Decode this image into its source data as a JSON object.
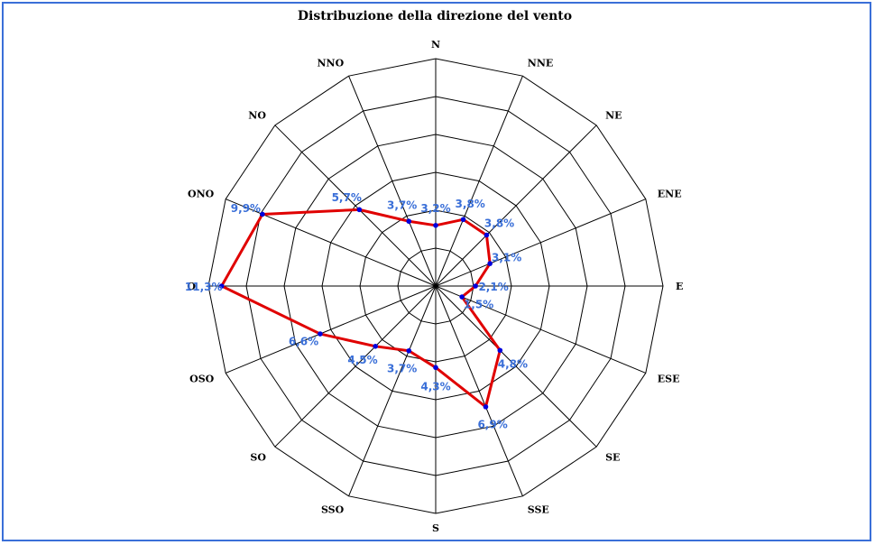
{
  "colors": {
    "frame": "#3a6fd8",
    "grid": "#000000",
    "series_line": "#e00000",
    "series_marker": "#0000dd",
    "value_label": "#3a6fd8"
  },
  "chart_data": {
    "type": "radar",
    "title": "Distribuzione della direzione del vento",
    "categories": [
      "N",
      "NNE",
      "NE",
      "ENE",
      "E",
      "ESE",
      "SE",
      "SSE",
      "S",
      "SSO",
      "SO",
      "OSO",
      "O",
      "ONO",
      "NO",
      "NNO"
    ],
    "value_labels": [
      "3,2%",
      "3,8%",
      "3,8%",
      "3,1%",
      "2,1%",
      "1,5%",
      "4,8%",
      "6,9%",
      "4,3%",
      "3,7%",
      "4,5%",
      "6,6%",
      "11,3%",
      "9,9%",
      "5,7%",
      "3,7%"
    ],
    "values": [
      3.2,
      3.8,
      3.8,
      3.1,
      2.1,
      1.5,
      4.8,
      6.9,
      4.3,
      3.7,
      4.5,
      6.6,
      11.3,
      9.9,
      5.7,
      3.7
    ],
    "radial_range": [
      0,
      12
    ],
    "rings": 6,
    "grid": true,
    "legend": "none"
  }
}
